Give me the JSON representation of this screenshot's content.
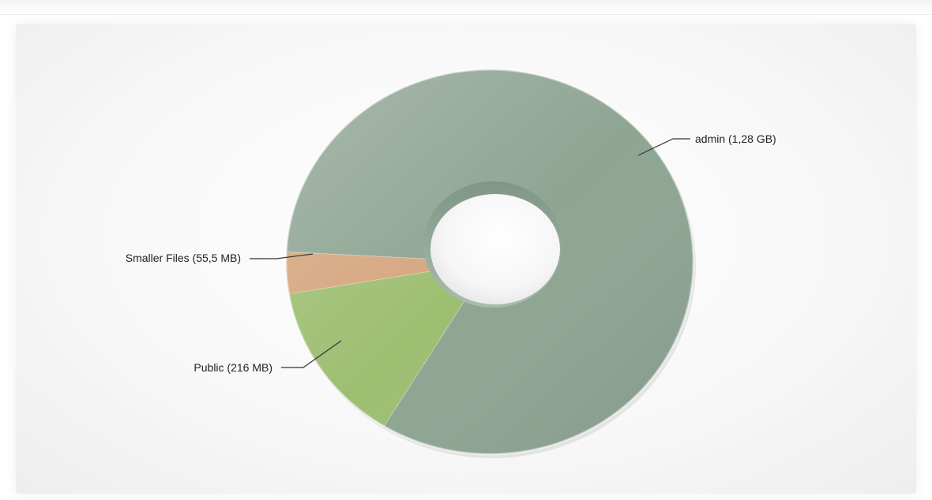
{
  "chart_data": {
    "type": "pie",
    "variant": "donut-3d",
    "title": "",
    "legend": "none",
    "unit": "MB",
    "slices": [
      {
        "label": "admin (1,28 GB)",
        "value": 1310.7,
        "color": "#8fa594"
      },
      {
        "label": "Public (216 MB)",
        "value": 216,
        "color": "#9dbf72"
      },
      {
        "label": "Smaller Files (55,5 MB)",
        "value": 55.5,
        "color": "#d6a67f"
      }
    ]
  }
}
